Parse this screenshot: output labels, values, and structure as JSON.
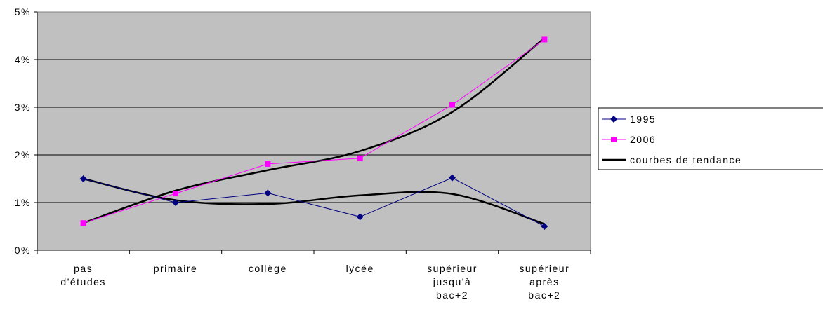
{
  "chart_data": {
    "type": "line",
    "categories": [
      [
        "pas",
        "d'études"
      ],
      [
        "primaire"
      ],
      [
        "collège"
      ],
      [
        "lycée"
      ],
      [
        "supérieur",
        "jusqu'à",
        "bac+2"
      ],
      [
        "supérieur",
        "après",
        "bac+2"
      ]
    ],
    "yticks": [
      "0%",
      "1%",
      "2%",
      "3%",
      "4%",
      "5%"
    ],
    "ylim": [
      0,
      5
    ],
    "grid": true,
    "legend_position": "right",
    "series": [
      {
        "name": "1995",
        "values": [
          1.5,
          1.0,
          1.2,
          0.7,
          1.52,
          0.5
        ],
        "color": "#000080",
        "marker": "diamond"
      },
      {
        "name": "2006",
        "values": [
          0.57,
          1.19,
          1.81,
          1.93,
          3.05,
          4.42
        ],
        "color": "#ff00ff",
        "marker": "square"
      }
    ],
    "trend": {
      "name": "courbes de tendance",
      "color": "#000000",
      "curves": [
        [
          1.5,
          1.05,
          0.97,
          1.15,
          1.18,
          0.55
        ],
        [
          0.57,
          1.25,
          1.68,
          2.08,
          2.9,
          4.45
        ]
      ]
    },
    "plot_background": "#c0c0c0"
  }
}
